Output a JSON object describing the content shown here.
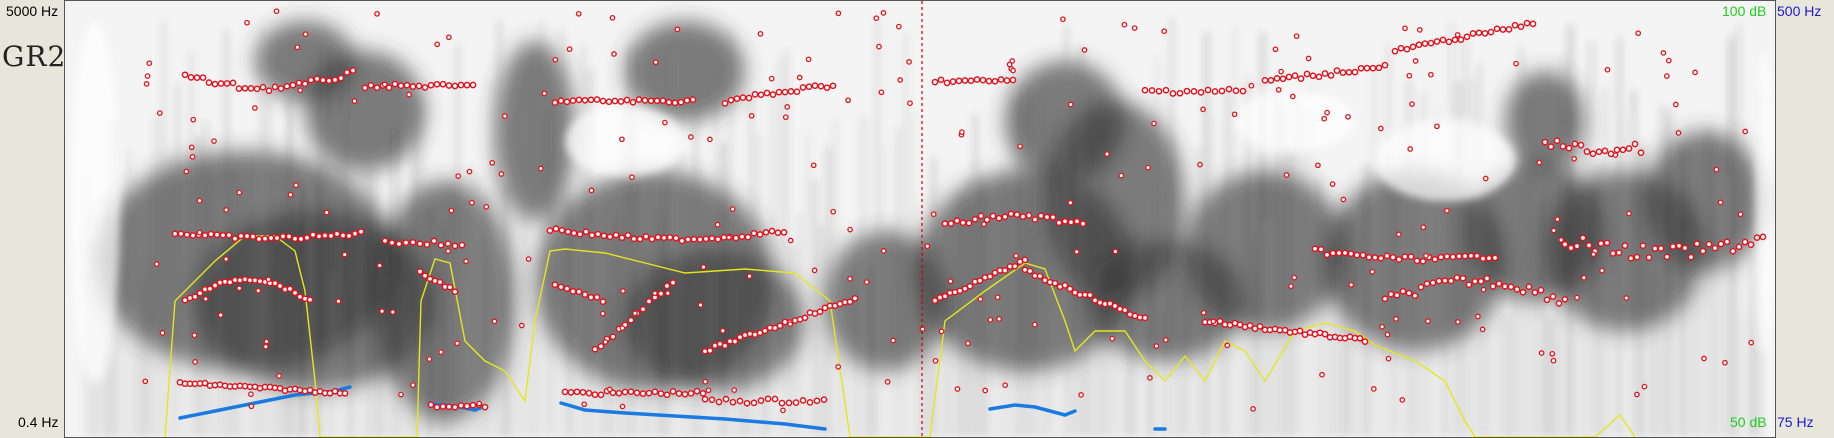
{
  "axis": {
    "freq_top": "5000 Hz",
    "freq_bottom": "0.4 Hz",
    "intensity_top": "100 dB",
    "intensity_bottom": "50 dB",
    "pitch_top": "500 Hz",
    "pitch_bottom": "75 Hz"
  },
  "tier_label": "GR2",
  "colors": {
    "formant": "#e0141e",
    "pitch": "#1a7ae0",
    "intensity": "#e6e61e",
    "cursor": "#cc0000",
    "intensity_label": "#22cc22",
    "pitch_label": "#1a1ad0"
  }
}
